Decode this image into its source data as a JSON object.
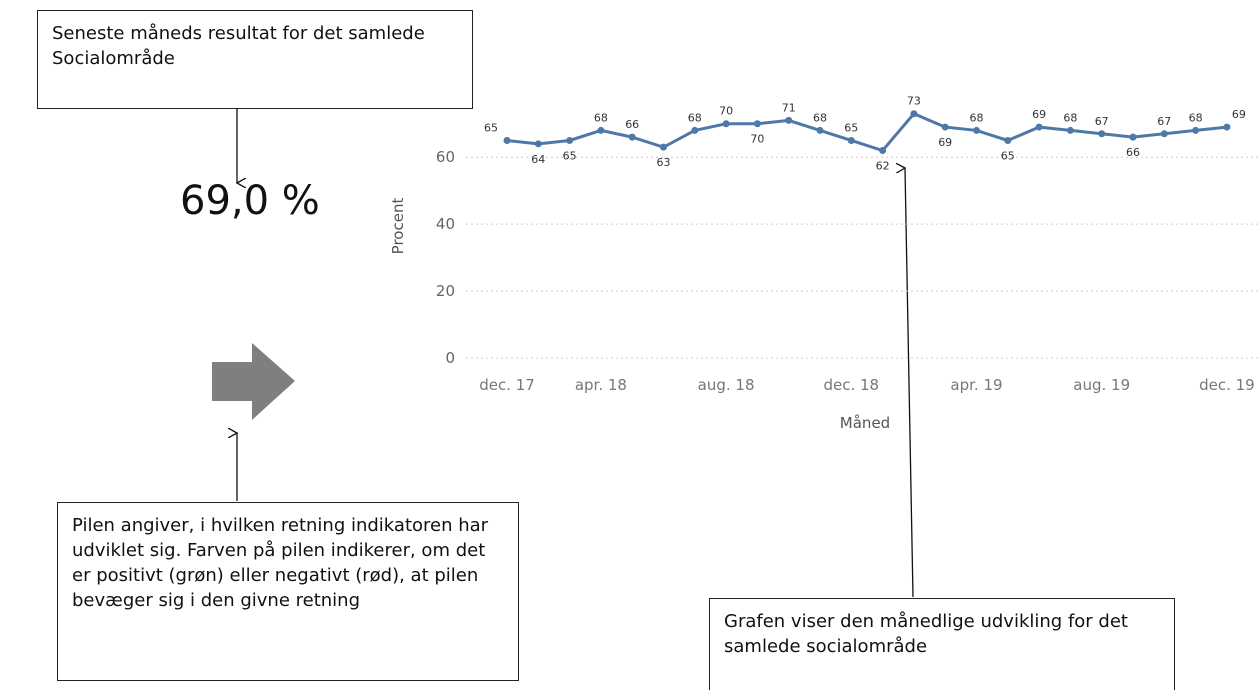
{
  "annotations": {
    "result_box": "Seneste måneds resultat for det samlede Socialområde",
    "arrow_box": "Pilen angiver, i hvilken retning indikatoren har udviklet sig. Farven på pilen indikerer, om det er positivt (grøn) eller negativt (rød), at pilen bevæger sig i den givne retning",
    "chart_box": "Grafen viser den månedlige udvikling for det samlede socialområde"
  },
  "kpi": {
    "value": "69,0 %"
  },
  "chart_data": {
    "type": "line",
    "x_label": "Måned",
    "y_label": "Procent",
    "categories": [
      "dec. 17",
      null,
      null,
      "apr. 18",
      null,
      null,
      null,
      "aug. 18",
      null,
      null,
      null,
      "dec. 18",
      null,
      null,
      null,
      "apr. 19",
      null,
      null,
      null,
      "aug. 19",
      null,
      null,
      null,
      "dec. 19"
    ],
    "series": [
      {
        "name": "Procent",
        "color": "#4e79a7",
        "values": [
          65,
          64,
          65,
          68,
          66,
          63,
          68,
          70,
          70,
          71,
          68,
          65,
          62,
          73,
          69,
          68,
          65,
          69,
          68,
          67,
          66,
          67,
          68,
          69
        ]
      }
    ],
    "ylim": [
      0,
      75
    ],
    "yticks": [
      0,
      20,
      40,
      60
    ],
    "grid": true
  }
}
